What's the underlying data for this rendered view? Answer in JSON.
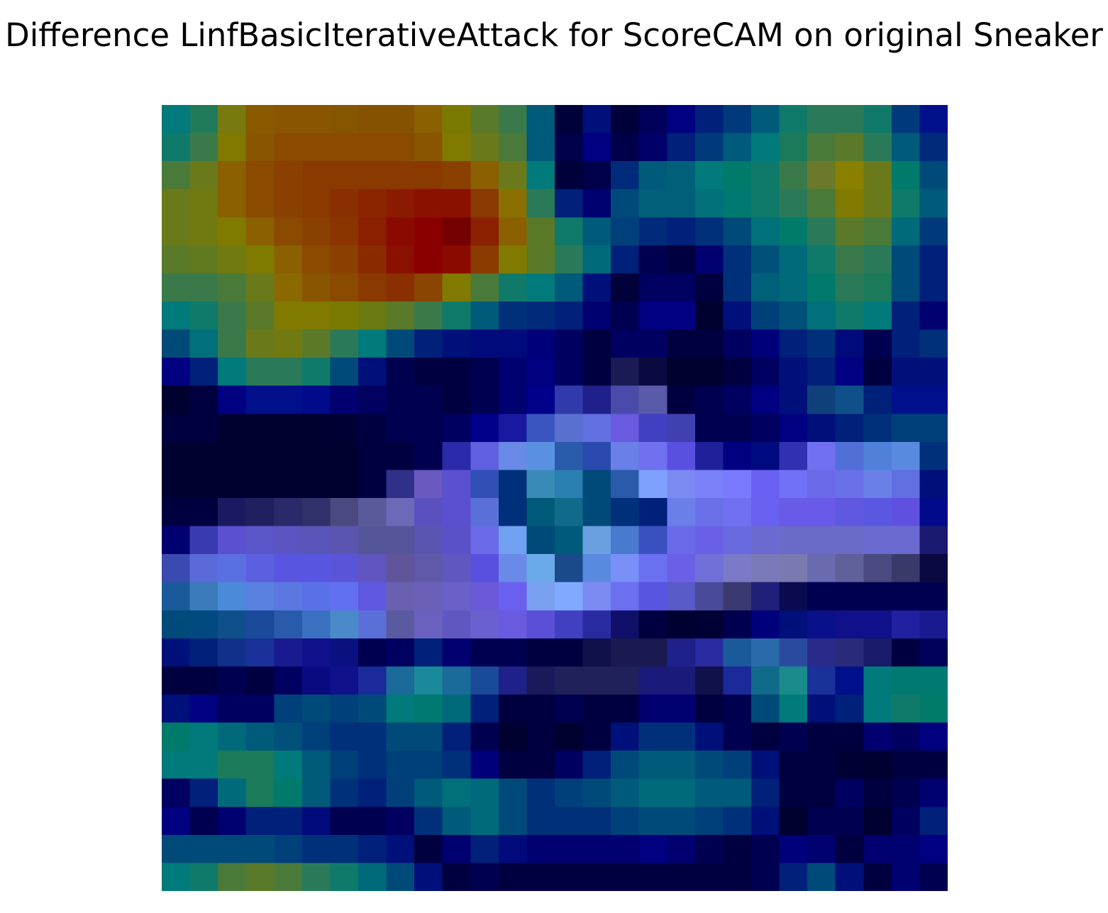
{
  "chart_data": {
    "type": "heatmap",
    "title": "Difference LinfBasicIterativeAttack for ScoreCAM on original Sneaker",
    "cells": [
      [
        "#007a7a",
        "#217a5a",
        "#787a10",
        "#8a5a00",
        "#8a5500",
        "#8a5500",
        "#855500",
        "#855200",
        "#855200",
        "#8a6000",
        "#7a7a00",
        "#5a7a2a",
        "#3a7a4a",
        "#005a7a",
        "#00003a",
        "#00107a",
        "#00003a",
        "#00005a",
        "#000080",
        "#00207a",
        "#003a7a",
        "#005a7a",
        "#107a6a",
        "#2a7a5a",
        "#2a7a5a",
        "#107a6a",
        "#003a7a",
        "#00108a"
      ],
      [
        "#107a6a",
        "#3a7a4a",
        "#807a00",
        "#8a5500",
        "#8a4a00",
        "#8a4a00",
        "#8a4a00",
        "#8a4a00",
        "#8a4a00",
        "#8a5500",
        "#807a00",
        "#6a7a1a",
        "#4a7a3a",
        "#005a7a",
        "#00004a",
        "#000080",
        "#00004a",
        "#00006a",
        "#00207a",
        "#003a7a",
        "#005a7a",
        "#007a7a",
        "#1a7a5a",
        "#4a7a3a",
        "#5a7a2a",
        "#2a7a5a",
        "#005a7a",
        "#002a7a"
      ],
      [
        "#4a7a3a",
        "#6a7a1a",
        "#8a6000",
        "#8a4a00",
        "#8a4000",
        "#8a3a00",
        "#8a3a00",
        "#8a3a00",
        "#8a3a00",
        "#8a3a00",
        "#8a4000",
        "#8a6000",
        "#6a7a1a",
        "#007a7a",
        "#00003a",
        "#00004a",
        "#002a7a",
        "#005a7a",
        "#00607a",
        "#007a7a",
        "#007a6a",
        "#107a6a",
        "#3a7a4a",
        "#6a7a2a",
        "#8a8000",
        "#6a7a1a",
        "#007a6a",
        "#004a7a"
      ],
      [
        "#6a7a1a",
        "#707a10",
        "#8a6000",
        "#8a4a00",
        "#8a4000",
        "#8a3a00",
        "#8a3000",
        "#8a2500",
        "#8a1a00",
        "#8a1000",
        "#8a1000",
        "#8a3a00",
        "#8a7000",
        "#2a7a5a",
        "#00207a",
        "#000070",
        "#004a7a",
        "#00607a",
        "#00607a",
        "#00707a",
        "#007a70",
        "#107a6a",
        "#2a7a5a",
        "#4a7a3a",
        "#807a00",
        "#6a7a1a",
        "#107a6a",
        "#005a7a"
      ],
      [
        "#6a7a1a",
        "#707a10",
        "#807a00",
        "#8a6000",
        "#8a4a00",
        "#8a4000",
        "#8a3500",
        "#8a2000",
        "#8a0a00",
        "#8a0000",
        "#750000",
        "#8a2000",
        "#8a6000",
        "#5a7a2a",
        "#107a6a",
        "#005a7a",
        "#00407a",
        "#002a7a",
        "#00207a",
        "#00307a",
        "#004a7a",
        "#00707a",
        "#007a6a",
        "#2a7a5a",
        "#5a7a2a",
        "#4a7a3a",
        "#006a7a",
        "#003a7a"
      ],
      [
        "#5a7a2a",
        "#607a20",
        "#707a10",
        "#807a00",
        "#8a6000",
        "#8a4a00",
        "#8a4000",
        "#8a2a00",
        "#8a1000",
        "#8a0000",
        "#8a0a00",
        "#8a3a00",
        "#807a00",
        "#5a7a2a",
        "#2a7a5a",
        "#006a7a",
        "#00207a",
        "#000050",
        "#000040",
        "#000070",
        "#00307a",
        "#00507a",
        "#006a7a",
        "#107a6a",
        "#3a7a4a",
        "#2a7a5a",
        "#004a7a",
        "#00207a"
      ],
      [
        "#3a7a4a",
        "#3a7a4a",
        "#4a7a3a",
        "#6a7a1a",
        "#8a6a00",
        "#8a5500",
        "#8a4a00",
        "#8a3a00",
        "#8a3000",
        "#8a4500",
        "#807a00",
        "#4a7a3a",
        "#107a6a",
        "#007a7a",
        "#005a7a",
        "#00107a",
        "#00003a",
        "#000060",
        "#000060",
        "#000040",
        "#00307a",
        "#00607a",
        "#006a7a",
        "#007a6a",
        "#2a7a5a",
        "#1a7a5a",
        "#004a7a",
        "#00207a"
      ],
      [
        "#007a7a",
        "#107a6a",
        "#3a7a4a",
        "#5a7a2a",
        "#807a00",
        "#807a00",
        "#7a7a00",
        "#6a7a10",
        "#5a7a2a",
        "#3a7a4a",
        "#107a6a",
        "#005a7a",
        "#00307a",
        "#002a7a",
        "#00207a",
        "#000070",
        "#000050",
        "#000080",
        "#000080",
        "#000030",
        "#00107a",
        "#00407a",
        "#00507a",
        "#00707a",
        "#107a6a",
        "#007a7a",
        "#00207a",
        "#000070"
      ],
      [
        "#004a7a",
        "#00707a",
        "#3a7a4a",
        "#6a7a1a",
        "#707a10",
        "#5a7a2a",
        "#2a7a5a",
        "#007a7a",
        "#004a7a",
        "#00207a",
        "#00107a",
        "#000a7a",
        "#000a7a",
        "#00007a",
        "#000060",
        "#000040",
        "#000060",
        "#000060",
        "#000040",
        "#000040",
        "#000060",
        "#00007a",
        "#00207a",
        "#00307a",
        "#000a7a",
        "#000050",
        "#00207a",
        "#00307a"
      ],
      [
        "#000080",
        "#00207a",
        "#007a7a",
        "#2a7a5a",
        "#2a7a5a",
        "#107a6a",
        "#004a7a",
        "#00107a",
        "#000050",
        "#000040",
        "#000040",
        "#000050",
        "#000070",
        "#000080",
        "#000060",
        "#000040",
        "#1a1a55",
        "#0a0a40",
        "#000030",
        "#000030",
        "#000040",
        "#000060",
        "#00107a",
        "#00207a",
        "#000080",
        "#000040",
        "#00107a",
        "#00107a"
      ],
      [
        "#000030",
        "#000040",
        "#000080",
        "#00108a",
        "#00108a",
        "#000a8a",
        "#000070",
        "#000060",
        "#000050",
        "#000050",
        "#000040",
        "#000050",
        "#000070",
        "#00008a",
        "#303aaa",
        "#20208a",
        "#4a4aaa",
        "#5a5aaa",
        "#000040",
        "#000050",
        "#000060",
        "#000080",
        "#00107a",
        "#10407a",
        "#10508a",
        "#00207a",
        "#00108a",
        "#00108a"
      ],
      [
        "#000040",
        "#000040",
        "#000030",
        "#000030",
        "#000030",
        "#000030",
        "#000035",
        "#000040",
        "#000050",
        "#000050",
        "#000060",
        "#00008a",
        "#1818a0",
        "#3a55c0",
        "#5a70d0",
        "#6070e0",
        "#6a5ae0",
        "#4040c0",
        "#4040b0",
        "#000050",
        "#000050",
        "#000060",
        "#000080",
        "#00107a",
        "#00207a",
        "#00307a",
        "#00407a",
        "#00407a"
      ],
      [
        "#000030",
        "#000030",
        "#000030",
        "#000030",
        "#000030",
        "#000030",
        "#000030",
        "#000040",
        "#000040",
        "#000050",
        "#2a2aaa",
        "#6060e0",
        "#6a8ae8",
        "#5a90e0",
        "#2a5aaa",
        "#2a4ab0",
        "#6a80e8",
        "#7070f0",
        "#5a50e0",
        "#20209a",
        "#000080",
        "#000a80",
        "#3030b0",
        "#7070f0",
        "#5070d8",
        "#5080d8",
        "#5a8ae0",
        "#00307a"
      ],
      [
        "#000030",
        "#000030",
        "#000030",
        "#000030",
        "#000030",
        "#000030",
        "#000030",
        "#000040",
        "#30308a",
        "#6a5ac0",
        "#5a50d0",
        "#3050b8",
        "#00307a",
        "#3a8ab8",
        "#2a80b0",
        "#004a7a",
        "#2a5aaa",
        "#80a0ff",
        "#7a8af0",
        "#7a80f8",
        "#7a7aff",
        "#6a60f0",
        "#7070f8",
        "#6a6ae8",
        "#6a70e8",
        "#6a80e8",
        "#6070e0",
        "#00107a"
      ],
      [
        "#000040",
        "#000040",
        "#1a1a60",
        "#202060",
        "#2a2a6a",
        "#30306a",
        "#4a4a80",
        "#5a5a9a",
        "#6a6ab8",
        "#5a50c0",
        "#5a50d0",
        "#5a70d8",
        "#00307a",
        "#005a7a",
        "#106a8a",
        "#004a7a",
        "#00307a",
        "#00207a",
        "#6a80e8",
        "#6a70e8",
        "#7070f0",
        "#6a60f0",
        "#6a5ae8",
        "#6a5ae8",
        "#6058e0",
        "#5a58e0",
        "#6050e0",
        "#000a8a"
      ],
      [
        "#000070",
        "#3a3ab0",
        "#5a50d0",
        "#5a55c8",
        "#5a55c0",
        "#5a55b8",
        "#5a55b0",
        "#55559a",
        "#55559a",
        "#5a55b0",
        "#5a50c8",
        "#6a6ae8",
        "#70a0f0",
        "#004a7a",
        "#005a7a",
        "#6aa0e0",
        "#4a7ad0",
        "#3a50c0",
        "#6a6ae8",
        "#6a60e8",
        "#6a6ae0",
        "#6a6ad0",
        "#6a6ac8",
        "#6a6ac8",
        "#6a6ac8",
        "#6a6ad0",
        "#6a6ad0",
        "#1a1a70"
      ],
      [
        "#3a4ab0",
        "#5a6ad8",
        "#5a70e0",
        "#5a60e0",
        "#5a55e0",
        "#5a55e0",
        "#5a55d8",
        "#6055c0",
        "#60559a",
        "#6058a8",
        "#6058c0",
        "#5a50e0",
        "#6a8ae8",
        "#6aaae8",
        "#1a4a8a",
        "#5a8ae0",
        "#7a90f8",
        "#6a70f0",
        "#6a60e8",
        "#7070d8",
        "#7a7ac8",
        "#7a7ab8",
        "#7a7ab0",
        "#6a6ab0",
        "#60609a",
        "#4a4a80",
        "#3a3a6a",
        "#0a0a40"
      ],
      [
        "#1a5a9a",
        "#3a7ab8",
        "#4a8ad8",
        "#5a80e0",
        "#5a78e0",
        "#5a70e8",
        "#6070f0",
        "#6058e0",
        "#6a60b0",
        "#6a60b8",
        "#6a60c8",
        "#6a5ad8",
        "#6a60f0",
        "#7aa0f0",
        "#80aaff",
        "#7a8af0",
        "#6a70f0",
        "#5a55e0",
        "#5a5ac8",
        "#4a4a9a",
        "#3a3a70",
        "#20207a",
        "#0a0a50",
        "#000050",
        "#000050",
        "#000050",
        "#000050",
        "#000050"
      ],
      [
        "#004a7a",
        "#004a80",
        "#10508a",
        "#1a4a9a",
        "#2a5aaa",
        "#3a70c0",
        "#4a8ac8",
        "#5a70d8",
        "#5a5aa0",
        "#6a60c0",
        "#6058c0",
        "#6a60d0",
        "#6a5ae0",
        "#5a50d8",
        "#4040c0",
        "#2a2aa0",
        "#10106a",
        "#000040",
        "#000030",
        "#000035",
        "#000050",
        "#00007a",
        "#00107a",
        "#0a108a",
        "#10108a",
        "#10108a",
        "#2020a0",
        "#1a1a90"
      ],
      [
        "#00107a",
        "#00207a",
        "#10308a",
        "#1a309a",
        "#1a1a90",
        "#10108a",
        "#0a1080",
        "#000050",
        "#000060",
        "#00207a",
        "#000070",
        "#000050",
        "#000050",
        "#000040",
        "#000040",
        "#10104a",
        "#1a1a50",
        "#1a1a50",
        "#20208a",
        "#2a2aa0",
        "#1a5a9a",
        "#2a6aaa",
        "#2a4aa0",
        "#2a2a8a",
        "#2a2a7a",
        "#1a1a6a",
        "#000040",
        "#00005a"
      ],
      [
        "#000040",
        "#000040",
        "#000050",
        "#000040",
        "#000060",
        "#0a0a80",
        "#10108a",
        "#1a2a9a",
        "#1a6a9a",
        "#1a8a9a",
        "#1a6a9a",
        "#1a4a9a",
        "#20208a",
        "#1a1a5a",
        "#20205a",
        "#20205a",
        "#20205a",
        "#1a1a7a",
        "#1a1a7a",
        "#10104a",
        "#1a2a9a",
        "#106a8a",
        "#1a8a8a",
        "#1a309a",
        "#00108a",
        "#007a7a",
        "#007a70",
        "#007a70"
      ],
      [
        "#00107a",
        "#000080",
        "#000060",
        "#000060",
        "#00407a",
        "#004a7a",
        "#00407a",
        "#004a7a",
        "#007a7a",
        "#007a70",
        "#006a7a",
        "#00207a",
        "#000040",
        "#000040",
        "#000050",
        "#000040",
        "#000040",
        "#000070",
        "#000070",
        "#000040",
        "#000050",
        "#004a7a",
        "#007a7a",
        "#00107a",
        "#00207a",
        "#007a7a",
        "#107a6a",
        "#007a6a"
      ],
      [
        "#007a6a",
        "#007a7a",
        "#006a7a",
        "#005a7a",
        "#00507a",
        "#00407a",
        "#00307a",
        "#00307a",
        "#004a7a",
        "#004a7a",
        "#00207a",
        "#000050",
        "#000030",
        "#000040",
        "#000030",
        "#000040",
        "#00107a",
        "#00307a",
        "#00307a",
        "#00107a",
        "#000050",
        "#000040",
        "#000050",
        "#000040",
        "#000040",
        "#000070",
        "#000060",
        "#000080"
      ],
      [
        "#007a7a",
        "#007a7a",
        "#1a7a5a",
        "#1a7a5a",
        "#007a7a",
        "#005a7a",
        "#00407a",
        "#00307a",
        "#00407a",
        "#00407a",
        "#00307a",
        "#00007a",
        "#000040",
        "#000040",
        "#000060",
        "#00207a",
        "#004a7a",
        "#005a7a",
        "#005a7a",
        "#004a7a",
        "#00407a",
        "#00107a",
        "#000040",
        "#000040",
        "#000035",
        "#000030",
        "#000040",
        "#000040"
      ],
      [
        "#000060",
        "#00207a",
        "#006a7a",
        "#1a7a5a",
        "#007a6a",
        "#005a7a",
        "#00307a",
        "#00207a",
        "#00407a",
        "#005a7a",
        "#00707a",
        "#006a7a",
        "#004a7a",
        "#00307a",
        "#00407a",
        "#004a7a",
        "#005a7a",
        "#006a7a",
        "#006a7a",
        "#005a7a",
        "#005a7a",
        "#00207a",
        "#000040",
        "#000040",
        "#000060",
        "#000040",
        "#000050",
        "#000070"
      ],
      [
        "#000080",
        "#000050",
        "#000070",
        "#00207a",
        "#00207a",
        "#000a7a",
        "#000050",
        "#000050",
        "#000060",
        "#00307a",
        "#005a7a",
        "#006a7a",
        "#004a7a",
        "#00307a",
        "#00307a",
        "#00307a",
        "#00407a",
        "#004a7a",
        "#004a7a",
        "#00407a",
        "#00307a",
        "#00107a",
        "#000030",
        "#000050",
        "#000050",
        "#000030",
        "#000060",
        "#00207a"
      ],
      [
        "#004a7a",
        "#004a7a",
        "#004a7a",
        "#004a7a",
        "#00407a",
        "#00307a",
        "#00307a",
        "#00207a",
        "#00107a",
        "#000040",
        "#000070",
        "#00207a",
        "#000a7a",
        "#000070",
        "#000070",
        "#000070",
        "#000070",
        "#000080",
        "#000070",
        "#000050",
        "#000040",
        "#000050",
        "#00007a",
        "#000070",
        "#000040",
        "#000070",
        "#000070",
        "#000080"
      ],
      [
        "#007a7a",
        "#107a6a",
        "#4a7a3a",
        "#5a7a2a",
        "#4a7a3a",
        "#2a7a5a",
        "#107a6a",
        "#006a7a",
        "#004a7a",
        "#00107a",
        "#000040",
        "#000050",
        "#000040",
        "#000040",
        "#000040",
        "#000040",
        "#000040",
        "#000040",
        "#000040",
        "#000040",
        "#000040",
        "#000050",
        "#00207a",
        "#004a7a",
        "#00107a",
        "#000040",
        "#000070",
        "#000050"
      ]
    ]
  }
}
